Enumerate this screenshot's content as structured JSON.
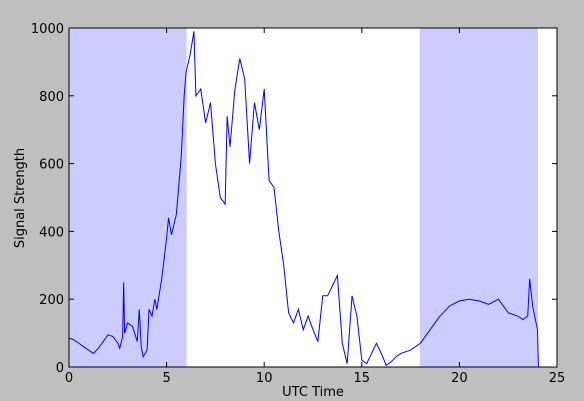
{
  "chart_data": {
    "type": "line",
    "xlabel": "UTC Time",
    "ylabel": "Signal Strength",
    "xlim": [
      0,
      25
    ],
    "xticks": [
      0,
      5,
      10,
      15,
      20,
      25
    ],
    "ylim": [
      0,
      1000
    ],
    "yticks": [
      0,
      200,
      400,
      600,
      800,
      1000
    ],
    "shaded_regions": [
      [
        0,
        6
      ],
      [
        18,
        24
      ]
    ],
    "shade_color": "#ccccff",
    "series": [
      {
        "color": "#0000ff",
        "x": [
          0,
          0.25,
          0.5,
          0.75,
          1,
          1.25,
          1.5,
          1.75,
          2,
          2.25,
          2.5,
          2.6,
          2.75,
          2.8,
          2.85,
          3,
          3.25,
          3.5,
          3.6,
          3.7,
          3.8,
          4,
          4.1,
          4.25,
          4.4,
          4.5,
          4.75,
          5,
          5.1,
          5.25,
          5.5,
          5.75,
          5.9,
          6,
          6.2,
          6.4,
          6.5,
          6.75,
          7,
          7.25,
          7.5,
          7.75,
          8,
          8.1,
          8.25,
          8.5,
          8.75,
          9,
          9.25,
          9.5,
          9.75,
          10,
          10.25,
          10.5,
          10.75,
          11,
          11.25,
          11.5,
          11.75,
          12,
          12.25,
          12.5,
          12.75,
          13,
          13.25,
          13.5,
          13.75,
          14,
          14.25,
          14.5,
          14.75,
          15,
          15.25,
          15.5,
          15.75,
          16,
          16.25,
          16.5,
          16.75,
          17,
          17.5,
          18,
          18.5,
          19,
          19.5,
          20,
          20.5,
          21,
          21.5,
          22,
          22.5,
          23,
          23.25,
          23.5,
          23.6,
          23.75,
          24,
          24.05
        ],
        "values": [
          85,
          80,
          70,
          60,
          50,
          40,
          55,
          75,
          95,
          90,
          70,
          55,
          90,
          250,
          100,
          130,
          120,
          75,
          170,
          60,
          30,
          50,
          170,
          150,
          200,
          170,
          260,
          380,
          440,
          390,
          450,
          620,
          800,
          870,
          920,
          990,
          800,
          820,
          720,
          780,
          600,
          500,
          480,
          740,
          650,
          820,
          910,
          850,
          600,
          780,
          700,
          820,
          550,
          530,
          400,
          300,
          160,
          130,
          170,
          110,
          150,
          110,
          75,
          210,
          210,
          240,
          270,
          70,
          10,
          210,
          150,
          20,
          10,
          40,
          70,
          40,
          5,
          15,
          30,
          40,
          50,
          70,
          110,
          150,
          180,
          195,
          200,
          195,
          185,
          200,
          160,
          150,
          140,
          150,
          260,
          180,
          110,
          0
        ]
      }
    ]
  }
}
